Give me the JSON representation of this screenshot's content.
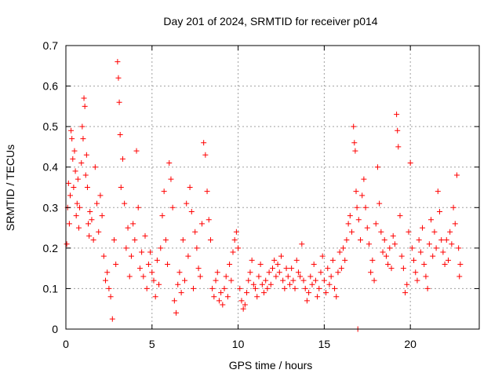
{
  "chart_data": {
    "type": "scatter",
    "title": "Day 201 of 2024, SRMTID for receiver p014",
    "xlabel": "GPS time / hours",
    "ylabel": "SRMTID / TECUs",
    "xlim": [
      0,
      24
    ],
    "ylim": [
      0,
      0.7
    ],
    "xticks": [
      0,
      5,
      10,
      15,
      20
    ],
    "yticks": [
      0,
      0.1,
      0.2,
      0.3,
      0.4,
      0.5,
      0.6,
      0.7
    ],
    "xtick_labels": [
      "0",
      "5",
      "10",
      "15",
      "20"
    ],
    "ytick_labels": [
      "0",
      "0.1",
      "0.2",
      "0.3",
      "0.4",
      "0.5",
      "0.6",
      "0.7"
    ],
    "grid": true,
    "marker": "+",
    "color": "#ff0000",
    "series": [
      {
        "name": "SRMTID",
        "points": [
          [
            0.05,
            0.21
          ],
          [
            0.1,
            0.3
          ],
          [
            0.15,
            0.36
          ],
          [
            0.2,
            0.26
          ],
          [
            0.25,
            0.33
          ],
          [
            0.3,
            0.49
          ],
          [
            0.35,
            0.47
          ],
          [
            0.4,
            0.42
          ],
          [
            0.45,
            0.35
          ],
          [
            0.5,
            0.44
          ],
          [
            0.55,
            0.39
          ],
          [
            0.6,
            0.28
          ],
          [
            0.65,
            0.31
          ],
          [
            0.7,
            0.37
          ],
          [
            0.75,
            0.25
          ],
          [
            0.8,
            0.3
          ],
          [
            0.9,
            0.41
          ],
          [
            0.95,
            0.5
          ],
          [
            1.0,
            0.47
          ],
          [
            1.05,
            0.57
          ],
          [
            1.1,
            0.55
          ],
          [
            1.15,
            0.38
          ],
          [
            1.2,
            0.43
          ],
          [
            1.25,
            0.35
          ],
          [
            1.3,
            0.26
          ],
          [
            1.35,
            0.23
          ],
          [
            1.4,
            0.29
          ],
          [
            1.5,
            0.27
          ],
          [
            1.6,
            0.22
          ],
          [
            1.7,
            0.4
          ],
          [
            1.8,
            0.31
          ],
          [
            1.9,
            0.24
          ],
          [
            2.0,
            0.33
          ],
          [
            2.1,
            0.28
          ],
          [
            2.2,
            0.18
          ],
          [
            2.3,
            0.12
          ],
          [
            2.4,
            0.14
          ],
          [
            2.5,
            0.1
          ],
          [
            2.6,
            0.08
          ],
          [
            2.7,
            0.025
          ],
          [
            2.8,
            0.22
          ],
          [
            2.9,
            0.16
          ],
          [
            3.0,
            0.66
          ],
          [
            3.05,
            0.62
          ],
          [
            3.1,
            0.56
          ],
          [
            3.15,
            0.48
          ],
          [
            3.2,
            0.35
          ],
          [
            3.3,
            0.42
          ],
          [
            3.4,
            0.31
          ],
          [
            3.5,
            0.2
          ],
          [
            3.6,
            0.25
          ],
          [
            3.7,
            0.13
          ],
          [
            3.8,
            0.18
          ],
          [
            3.9,
            0.26
          ],
          [
            4.0,
            0.22
          ],
          [
            4.1,
            0.44
          ],
          [
            4.2,
            0.3
          ],
          [
            4.3,
            0.15
          ],
          [
            4.4,
            0.19
          ],
          [
            4.5,
            0.13
          ],
          [
            4.6,
            0.23
          ],
          [
            4.7,
            0.1
          ],
          [
            4.8,
            0.16
          ],
          [
            4.9,
            0.19
          ],
          [
            5.0,
            0.14
          ],
          [
            5.1,
            0.12
          ],
          [
            5.2,
            0.08
          ],
          [
            5.3,
            0.17
          ],
          [
            5.4,
            0.11
          ],
          [
            5.5,
            0.2
          ],
          [
            5.6,
            0.28
          ],
          [
            5.7,
            0.34
          ],
          [
            5.8,
            0.22
          ],
          [
            5.9,
            0.16
          ],
          [
            6.0,
            0.41
          ],
          [
            6.1,
            0.37
          ],
          [
            6.2,
            0.3
          ],
          [
            6.3,
            0.07
          ],
          [
            6.4,
            0.04
          ],
          [
            6.5,
            0.11
          ],
          [
            6.6,
            0.14
          ],
          [
            6.7,
            0.09
          ],
          [
            6.8,
            0.22
          ],
          [
            6.9,
            0.12
          ],
          [
            7.0,
            0.31
          ],
          [
            7.1,
            0.18
          ],
          [
            7.2,
            0.35
          ],
          [
            7.3,
            0.29
          ],
          [
            7.4,
            0.1
          ],
          [
            7.5,
            0.24
          ],
          [
            7.6,
            0.2
          ],
          [
            7.7,
            0.15
          ],
          [
            7.8,
            0.13
          ],
          [
            7.9,
            0.26
          ],
          [
            8.0,
            0.46
          ],
          [
            8.1,
            0.43
          ],
          [
            8.2,
            0.34
          ],
          [
            8.3,
            0.27
          ],
          [
            8.4,
            0.22
          ],
          [
            8.5,
            0.1
          ],
          [
            8.6,
            0.08
          ],
          [
            8.7,
            0.12
          ],
          [
            8.8,
            0.14
          ],
          [
            8.9,
            0.07
          ],
          [
            9.0,
            0.09
          ],
          [
            9.1,
            0.06
          ],
          [
            9.2,
            0.1
          ],
          [
            9.3,
            0.13
          ],
          [
            9.4,
            0.08
          ],
          [
            9.5,
            0.16
          ],
          [
            9.6,
            0.12
          ],
          [
            9.7,
            0.19
          ],
          [
            9.8,
            0.22
          ],
          [
            9.9,
            0.24
          ],
          [
            10.0,
            0.2
          ],
          [
            10.1,
            0.1
          ],
          [
            10.2,
            0.07
          ],
          [
            10.3,
            0.05
          ],
          [
            10.4,
            0.06
          ],
          [
            10.5,
            0.09
          ],
          [
            10.6,
            0.12
          ],
          [
            10.7,
            0.14
          ],
          [
            10.8,
            0.17
          ],
          [
            10.9,
            0.11
          ],
          [
            11.0,
            0.1
          ],
          [
            11.1,
            0.08
          ],
          [
            11.2,
            0.13
          ],
          [
            11.3,
            0.16
          ],
          [
            11.4,
            0.11
          ],
          [
            11.5,
            0.09
          ],
          [
            11.6,
            0.12
          ],
          [
            11.7,
            0.1
          ],
          [
            11.8,
            0.14
          ],
          [
            11.9,
            0.11
          ],
          [
            12.0,
            0.15
          ],
          [
            12.1,
            0.17
          ],
          [
            12.2,
            0.13
          ],
          [
            12.3,
            0.16
          ],
          [
            12.4,
            0.14
          ],
          [
            12.5,
            0.18
          ],
          [
            12.6,
            0.12
          ],
          [
            12.7,
            0.1
          ],
          [
            12.8,
            0.15
          ],
          [
            12.9,
            0.13
          ],
          [
            13.0,
            0.11
          ],
          [
            13.1,
            0.15
          ],
          [
            13.2,
            0.12
          ],
          [
            13.3,
            0.1
          ],
          [
            13.4,
            0.17
          ],
          [
            13.5,
            0.14
          ],
          [
            13.6,
            0.13
          ],
          [
            13.7,
            0.21
          ],
          [
            13.8,
            0.12
          ],
          [
            13.9,
            0.1
          ],
          [
            14.0,
            0.07
          ],
          [
            14.1,
            0.09
          ],
          [
            14.2,
            0.13
          ],
          [
            14.3,
            0.11
          ],
          [
            14.4,
            0.16
          ],
          [
            14.5,
            0.12
          ],
          [
            14.6,
            0.08
          ],
          [
            14.7,
            0.1
          ],
          [
            14.8,
            0.14
          ],
          [
            14.9,
            0.18
          ],
          [
            15.0,
            0.12
          ],
          [
            15.1,
            0.09
          ],
          [
            15.2,
            0.15
          ],
          [
            15.3,
            0.11
          ],
          [
            15.4,
            0.13
          ],
          [
            15.5,
            0.17
          ],
          [
            15.6,
            0.1
          ],
          [
            15.7,
            0.08
          ],
          [
            15.8,
            0.14
          ],
          [
            15.9,
            0.19
          ],
          [
            16.0,
            0.15
          ],
          [
            16.1,
            0.2
          ],
          [
            16.2,
            0.17
          ],
          [
            16.3,
            0.22
          ],
          [
            16.4,
            0.26
          ],
          [
            16.5,
            0.28
          ],
          [
            16.6,
            0.24
          ],
          [
            16.7,
            0.5
          ],
          [
            16.75,
            0.46
          ],
          [
            16.8,
            0.44
          ],
          [
            16.85,
            0.34
          ],
          [
            16.9,
            0.3
          ],
          [
            16.95,
            0.0
          ],
          [
            17.0,
            0.27
          ],
          [
            17.1,
            0.22
          ],
          [
            17.2,
            0.33
          ],
          [
            17.3,
            0.37
          ],
          [
            17.4,
            0.3
          ],
          [
            17.5,
            0.25
          ],
          [
            17.6,
            0.21
          ],
          [
            17.7,
            0.14
          ],
          [
            17.8,
            0.17
          ],
          [
            17.9,
            0.12
          ],
          [
            18.0,
            0.26
          ],
          [
            18.1,
            0.4
          ],
          [
            18.2,
            0.31
          ],
          [
            18.3,
            0.24
          ],
          [
            18.4,
            0.19
          ],
          [
            18.5,
            0.22
          ],
          [
            18.6,
            0.18
          ],
          [
            18.7,
            0.16
          ],
          [
            18.8,
            0.2
          ],
          [
            18.9,
            0.15
          ],
          [
            19.0,
            0.23
          ],
          [
            19.1,
            0.21
          ],
          [
            19.2,
            0.53
          ],
          [
            19.25,
            0.49
          ],
          [
            19.3,
            0.45
          ],
          [
            19.4,
            0.28
          ],
          [
            19.5,
            0.18
          ],
          [
            19.6,
            0.15
          ],
          [
            19.7,
            0.09
          ],
          [
            19.8,
            0.11
          ],
          [
            19.9,
            0.24
          ],
          [
            20.0,
            0.41
          ],
          [
            20.1,
            0.2
          ],
          [
            20.2,
            0.17
          ],
          [
            20.3,
            0.14
          ],
          [
            20.4,
            0.12
          ],
          [
            20.5,
            0.22
          ],
          [
            20.6,
            0.19
          ],
          [
            20.7,
            0.25
          ],
          [
            20.8,
            0.16
          ],
          [
            20.9,
            0.13
          ],
          [
            21.0,
            0.1
          ],
          [
            21.1,
            0.21
          ],
          [
            21.2,
            0.27
          ],
          [
            21.3,
            0.18
          ],
          [
            21.4,
            0.24
          ],
          [
            21.5,
            0.2
          ],
          [
            21.6,
            0.34
          ],
          [
            21.7,
            0.29
          ],
          [
            21.8,
            0.22
          ],
          [
            21.9,
            0.19
          ],
          [
            22.0,
            0.16
          ],
          [
            22.1,
            0.22
          ],
          [
            22.2,
            0.17
          ],
          [
            22.3,
            0.24
          ],
          [
            22.4,
            0.21
          ],
          [
            22.5,
            0.3
          ],
          [
            22.6,
            0.26
          ],
          [
            22.7,
            0.38
          ],
          [
            22.8,
            0.2
          ],
          [
            22.85,
            0.13
          ],
          [
            22.9,
            0.16
          ]
        ]
      }
    ]
  }
}
